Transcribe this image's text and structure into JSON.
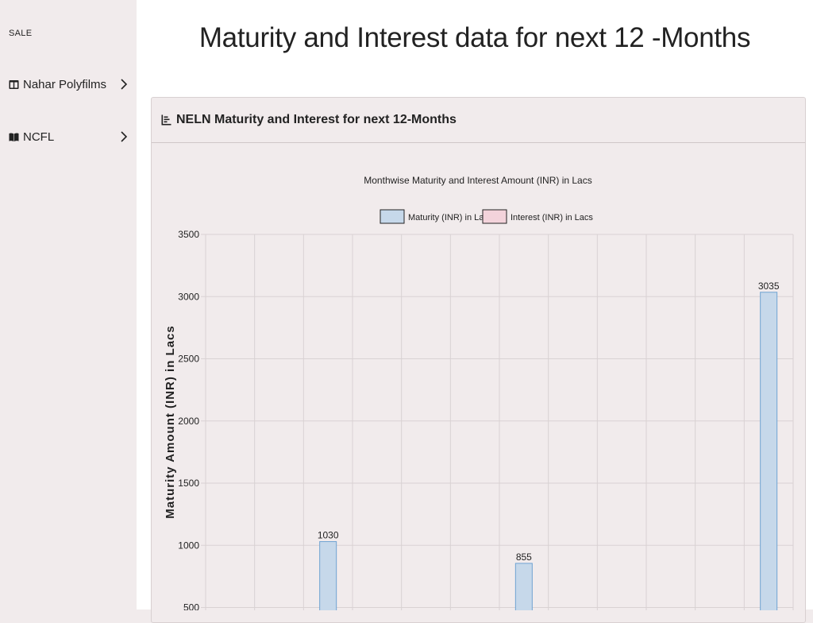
{
  "sidebar": {
    "heading": "SALE",
    "items": [
      {
        "label": "Nahar Polyfilms",
        "icon": "columns-icon"
      },
      {
        "label": "NCFL",
        "icon": "book-icon"
      }
    ]
  },
  "page": {
    "title": "Maturity and Interest data for next 12 -Months"
  },
  "card": {
    "icon": "bar-list-icon",
    "title": "NELN Maturity and Interest for next 12-Months"
  },
  "colors": {
    "maturity_fill": "#c6d8ea",
    "maturity_border": "#6fa3d2",
    "interest_fill": "#f3d3db",
    "interest_border": "#e29aae",
    "grid": "#d9d2d3"
  },
  "chart_data": {
    "type": "bar",
    "title": "Monthwise Maturity and Interest Amount (INR) in Lacs",
    "ylabel": "Maturity Amount (INR) in Lacs",
    "ylim": [
      0,
      3500
    ],
    "y_ticks": [
      500,
      1000,
      1500,
      2000,
      2500,
      3000,
      3500
    ],
    "legend_position": "top",
    "grid": true,
    "series": [
      {
        "name": "Maturity (INR) in Lacs",
        "values": [
          0,
          0,
          1030,
          0,
          0,
          0,
          855,
          0,
          0,
          0,
          0,
          3035
        ]
      },
      {
        "name": "Interest (INR) in Lacs",
        "values": [
          0,
          0,
          0,
          0,
          0,
          0,
          0,
          0,
          0,
          0,
          0,
          0
        ]
      }
    ],
    "data_labels": [
      "",
      "",
      "1030",
      "",
      "",
      "",
      "855",
      "",
      "",
      "",
      "",
      "3035"
    ]
  }
}
